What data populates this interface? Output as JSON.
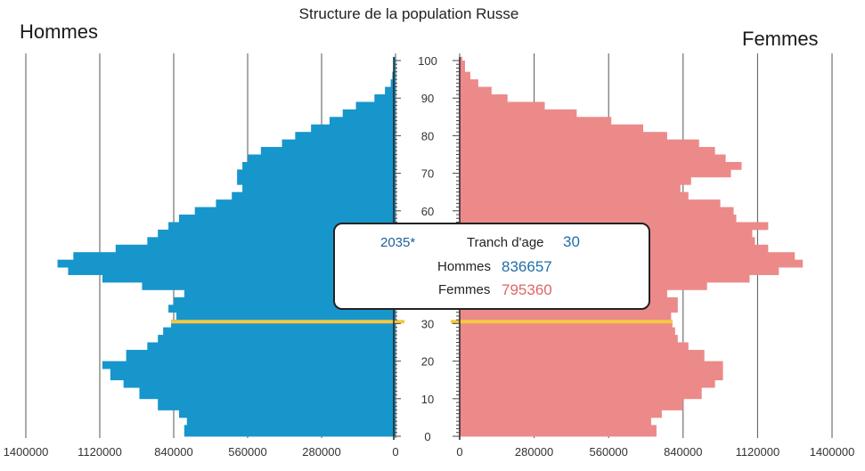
{
  "chart_data": {
    "type": "bar",
    "title": "Structure de la population Russe",
    "left_label": "Hommes",
    "right_label": "Femmes",
    "age_ticks": [
      0,
      10,
      20,
      30,
      40,
      50,
      60,
      70,
      80,
      90,
      100
    ],
    "value_ticks_left": [
      "1400000",
      "1120000",
      "840000",
      "560000",
      "280000",
      "0"
    ],
    "value_ticks_right": [
      "0",
      "280000",
      "560000",
      "840000",
      "1120000",
      "1400000"
    ],
    "xlim": [
      0,
      1400000
    ],
    "ylim": [
      0,
      100
    ],
    "grid": true,
    "highlight_age": 30,
    "colors": {
      "men": "#1796cc",
      "women": "#ec8a8a",
      "highlight": "#f5c842"
    },
    "series": [
      {
        "name": "Hommes",
        "ages": [
          0,
          3,
          5,
          7,
          10,
          13,
          15,
          18,
          20,
          23,
          25,
          27,
          29,
          31,
          33,
          35,
          37,
          39,
          41,
          43,
          45,
          47,
          49,
          51,
          53,
          55,
          57,
          59,
          61,
          63,
          65,
          67,
          69,
          71,
          73,
          75,
          77,
          79,
          81,
          83,
          85,
          87,
          89,
          91,
          93,
          95,
          97,
          100
        ],
        "values": [
          800000,
          790000,
          820000,
          900000,
          970000,
          1030000,
          1080000,
          1110000,
          1020000,
          940000,
          900000,
          880000,
          850000,
          830000,
          860000,
          840000,
          800000,
          960000,
          1110000,
          1240000,
          1280000,
          1220000,
          1060000,
          940000,
          900000,
          860000,
          820000,
          760000,
          680000,
          620000,
          580000,
          600000,
          600000,
          580000,
          560000,
          510000,
          430000,
          380000,
          320000,
          250000,
          200000,
          150000,
          80000,
          40000,
          18000,
          12000,
          8000,
          5000
        ]
      },
      {
        "name": "Femmes",
        "ages": [
          0,
          3,
          5,
          7,
          10,
          13,
          15,
          18,
          20,
          23,
          25,
          27,
          29,
          31,
          33,
          35,
          37,
          39,
          41,
          43,
          45,
          47,
          49,
          51,
          53,
          55,
          57,
          59,
          61,
          63,
          65,
          67,
          69,
          71,
          73,
          75,
          77,
          79,
          81,
          83,
          85,
          87,
          89,
          91,
          93,
          95,
          97,
          100
        ],
        "values": [
          740000,
          720000,
          760000,
          840000,
          910000,
          960000,
          990000,
          990000,
          920000,
          860000,
          820000,
          810000,
          800000,
          795000,
          820000,
          820000,
          780000,
          930000,
          1090000,
          1200000,
          1290000,
          1260000,
          1160000,
          1110000,
          1100000,
          1160000,
          1040000,
          1030000,
          980000,
          860000,
          830000,
          870000,
          1020000,
          1060000,
          1000000,
          960000,
          900000,
          780000,
          690000,
          570000,
          440000,
          320000,
          180000,
          120000,
          70000,
          40000,
          20000,
          10000
        ]
      }
    ]
  },
  "tooltip": {
    "year": "2035*",
    "age_label": "Tranch d'age",
    "age_value": "30",
    "men_label": "Hommes",
    "men_value": "836657",
    "women_label": "Femmes",
    "women_value": "795360"
  }
}
